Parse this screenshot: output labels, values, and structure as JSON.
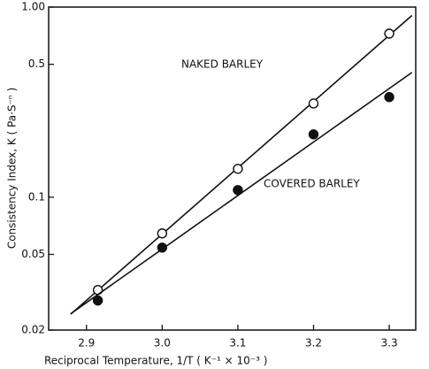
{
  "chart_data": {
    "type": "scatter",
    "xlabel": "Reciprocal Temperature, 1/T ( K⁻¹ × 10⁻³ )",
    "ylabel": "Consistency Index, K ( Pa·S⁻ⁿ )",
    "xlim": [
      2.85,
      3.335
    ],
    "ylim": [
      0.02,
      1.0
    ],
    "ylog": true,
    "xticks": [
      2.9,
      {
        "value": 3.0,
        "label": "3.0"
      },
      3.1,
      3.2,
      3.3
    ],
    "yticks": [
      0.02,
      0.05,
      0.1,
      0.5,
      {
        "value": 1.0,
        "label": "1.00"
      }
    ],
    "annotations": [
      "NAKED BARLEY",
      "COVERED BARLEY"
    ],
    "series": [
      {
        "name": "NAKED BARLEY",
        "marker": "open",
        "color": "#111111",
        "x": [
          2.915,
          3.0,
          3.1,
          3.2,
          3.3
        ],
        "values": [
          0.0325,
          0.0645,
          0.141,
          0.311,
          0.725
        ]
      },
      {
        "name": "COVERED BARLEY",
        "marker": "filled",
        "color": "#111111",
        "x": [
          2.915,
          3.0,
          3.1,
          3.2,
          3.3
        ],
        "values": [
          0.0286,
          0.0543,
          0.109,
          0.214,
          0.336
        ]
      }
    ]
  }
}
